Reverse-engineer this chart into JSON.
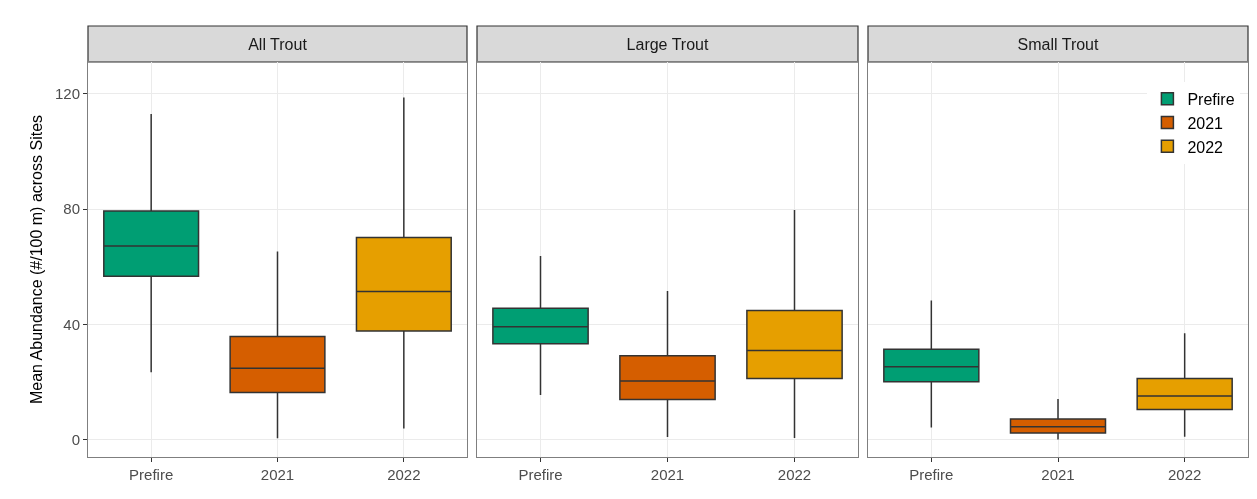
{
  "chart_data": [
    {
      "type": "box",
      "title": "All Trout",
      "ylabel": "Mean Abundance (#/100 m) across Sites",
      "categories": [
        "Prefire",
        "2021",
        "2022"
      ],
      "ylim": [
        -6,
        131
      ],
      "yticks": [
        0,
        40,
        80,
        120
      ],
      "grid": true,
      "series": [
        {
          "color": "#009e73",
          "boxes": [
            {
              "low": 23.4,
              "q1": 56.7,
              "median": 67.2,
              "q3": 79.3,
              "high": 113
            },
            null,
            null
          ]
        },
        {
          "color": "#d55e00",
          "boxes": [
            null,
            {
              "low": 0.5,
              "q1": 16.4,
              "median": 24.8,
              "q3": 35.8,
              "high": 65.3
            },
            null
          ]
        },
        {
          "color": "#e69f00",
          "boxes": [
            null,
            null,
            {
              "low": 3.9,
              "q1": 37.7,
              "median": 51.4,
              "q3": 70.1,
              "high": 118.7
            }
          ]
        }
      ]
    },
    {
      "type": "box",
      "title": "Large Trout",
      "categories": [
        "Prefire",
        "2021",
        "2022"
      ],
      "ylim": [
        -6,
        131
      ],
      "yticks": [
        0,
        40,
        80,
        120
      ],
      "grid": true,
      "tick_labels": "x",
      "series": [
        {
          "color": "#009e73",
          "boxes": [
            {
              "low": 15.5,
              "q1": 33.3,
              "median": 39.2,
              "q3": 45.6,
              "high": 63.7
            },
            null,
            null
          ]
        },
        {
          "color": "#d55e00",
          "boxes": [
            null,
            {
              "low": 0.9,
              "q1": 13.9,
              "median": 20.4,
              "q3": 29.1,
              "high": 51.6
            },
            null
          ]
        },
        {
          "color": "#e69f00",
          "boxes": [
            null,
            null,
            {
              "low": 0.6,
              "q1": 21.2,
              "median": 30.9,
              "q3": 44.8,
              "high": 79.7
            }
          ]
        }
      ]
    },
    {
      "type": "box",
      "title": "Small Trout",
      "categories": [
        "Prefire",
        "2021",
        "2022"
      ],
      "ylim": [
        -6,
        131
      ],
      "yticks": [
        0,
        40,
        80,
        120
      ],
      "grid": true,
      "tick_labels": "x",
      "legend": "top right",
      "series": [
        {
          "name": "Prefire",
          "color": "#009e73",
          "boxes": [
            {
              "low": 4.2,
              "q1": 20.1,
              "median": 25.3,
              "q3": 31.4,
              "high": 48.3
            },
            null,
            null
          ]
        },
        {
          "name": "2021",
          "color": "#d55e00",
          "boxes": [
            null,
            {
              "low": 0.1,
              "q1": 2.3,
              "median": 4.5,
              "q3": 7.2,
              "high": 14.1
            },
            null
          ]
        },
        {
          "name": "2022",
          "color": "#e69f00",
          "boxes": [
            null,
            null,
            {
              "low": 1.0,
              "q1": 10.5,
              "median": 15.2,
              "q3": 21.2,
              "high": 36.9
            }
          ]
        }
      ]
    }
  ]
}
